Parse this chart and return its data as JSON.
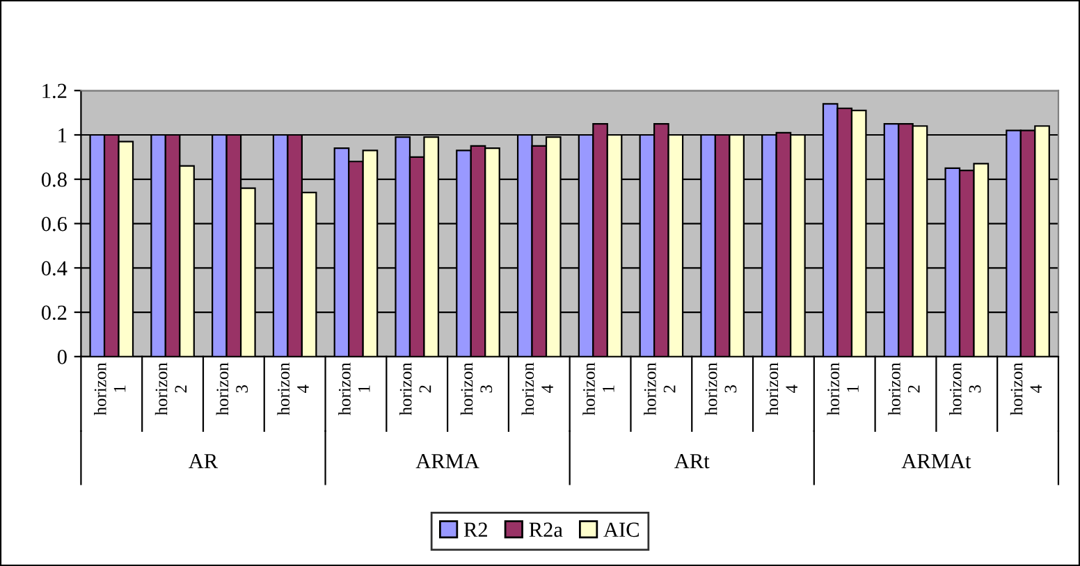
{
  "chart_data": {
    "type": "bar",
    "categories": [
      "horizon 1",
      "horizon 2",
      "horizon 3",
      "horizon 4",
      "horizon 1",
      "horizon 2",
      "horizon 3",
      "horizon 4",
      "horizon 1",
      "horizon 2",
      "horizon 3",
      "horizon 4",
      "horizon 1",
      "horizon 2",
      "horizon 3",
      "horizon 4"
    ],
    "series": [
      {
        "name": "R2",
        "color": "#9999ff",
        "values": [
          1,
          1,
          1,
          1,
          0.94,
          0.99,
          0.93,
          1.0,
          1.0,
          1.0,
          1.0,
          1.0,
          1.14,
          1.05,
          0.85,
          1.02
        ]
      },
      {
        "name": "R2a",
        "color": "#993366",
        "values": [
          1,
          1,
          1,
          1,
          0.88,
          0.9,
          0.95,
          0.95,
          1.05,
          1.05,
          1.0,
          1.01,
          1.12,
          1.05,
          0.84,
          1.02
        ]
      },
      {
        "name": "AIC",
        "color": "#ffffcc",
        "values": [
          0.97,
          0.86,
          0.76,
          0.74,
          0.93,
          0.99,
          0.94,
          0.99,
          1.0,
          1.0,
          1.0,
          1.0,
          1.11,
          1.04,
          0.87,
          1.04
        ]
      }
    ],
    "annotations": [
      "AR",
      "ARMA",
      "ARt",
      "ARMAt"
    ],
    "ylim": [
      0,
      1.2
    ],
    "yticks": [
      0,
      0.2,
      0.4,
      0.6,
      0.8,
      1,
      1.2
    ],
    "grid": "y",
    "legend": "bottom"
  }
}
